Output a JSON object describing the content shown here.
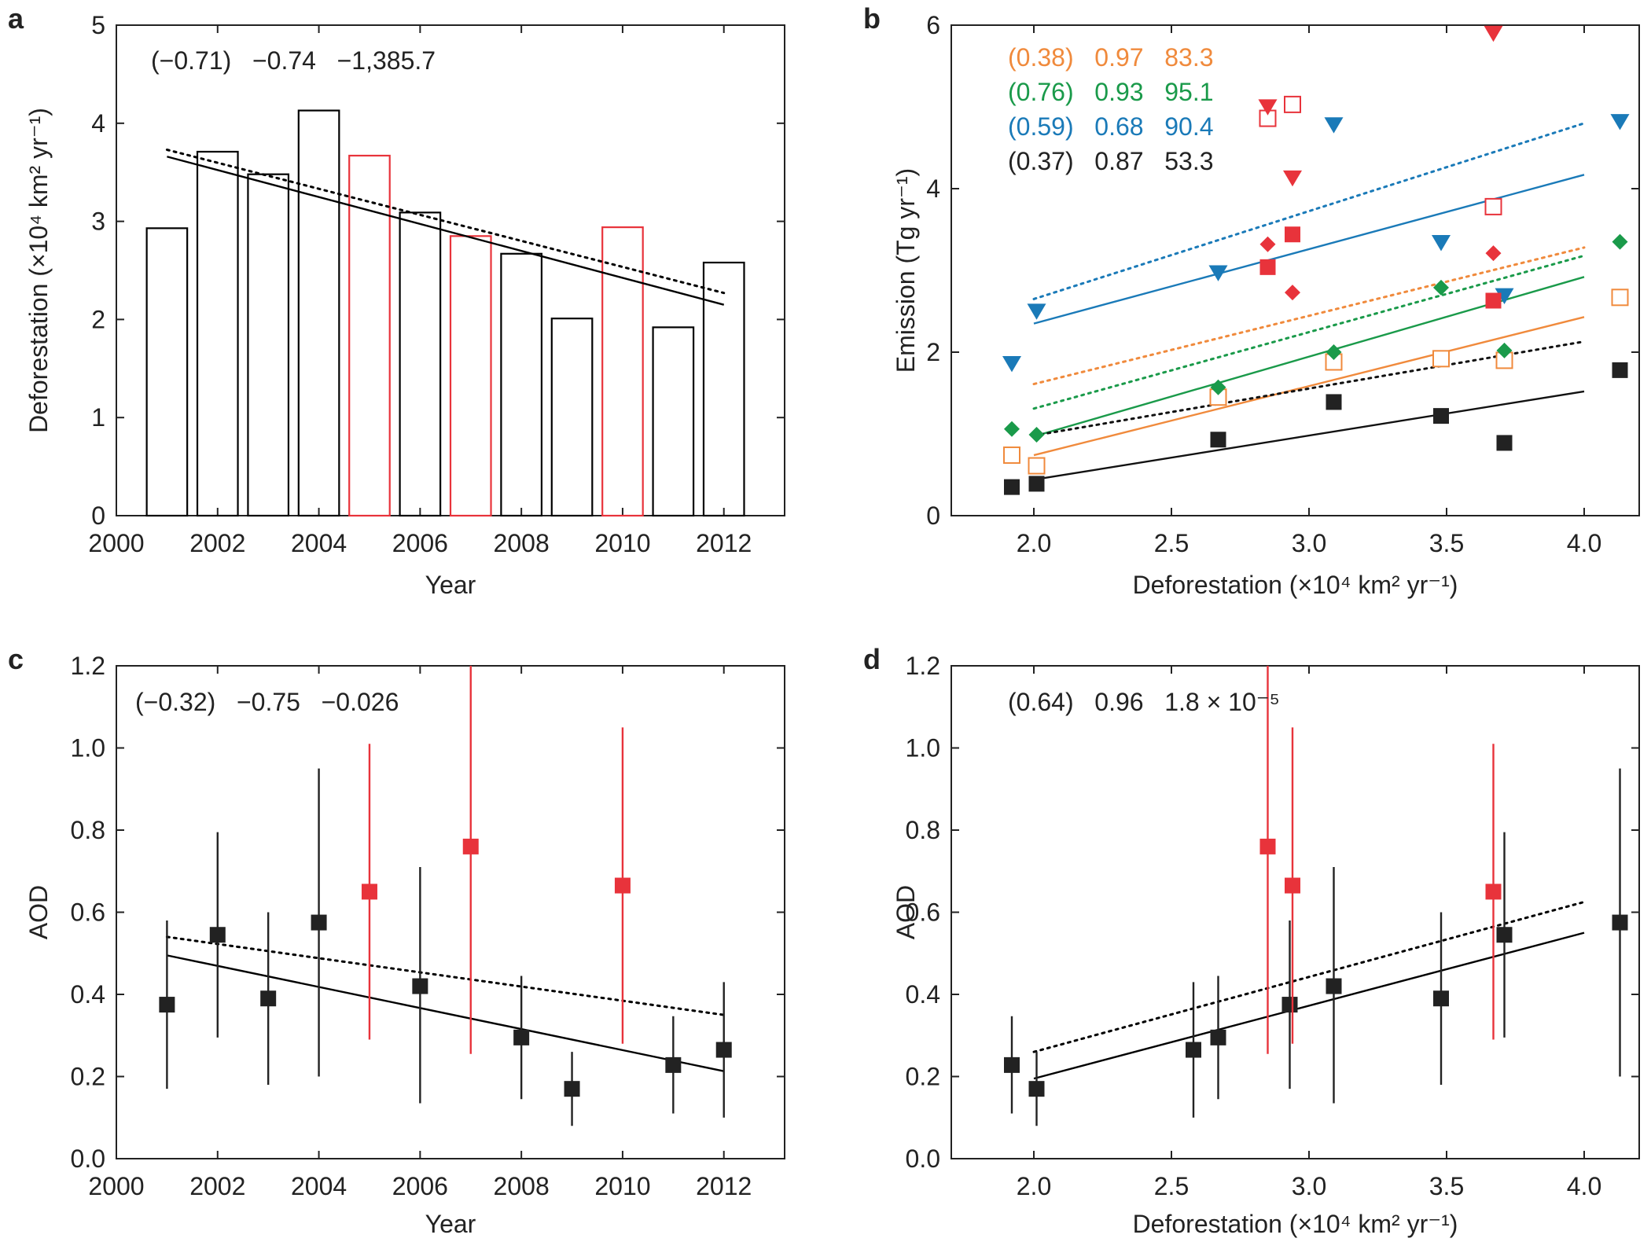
{
  "chart_data": [
    {
      "id": "a",
      "panel_label": "a",
      "type": "bar",
      "xlabel": "Year",
      "ylabel": "Deforestation (×10⁴ km² yr⁻¹)",
      "xlim": [
        2000,
        2013.2
      ],
      "ylim": [
        0,
        5
      ],
      "xticks": [
        2000,
        2002,
        2004,
        2006,
        2008,
        2010,
        2012
      ],
      "yticks": [
        0,
        1,
        2,
        3,
        4,
        5
      ],
      "tick_labels_x": [
        "2000",
        "2002",
        "2004",
        "2006",
        "2008",
        "2010",
        "2012"
      ],
      "tick_labels_y": [
        "0",
        "1",
        "2",
        "3",
        "4",
        "5"
      ],
      "bar_width": 0.8,
      "bars": [
        {
          "x": 2001,
          "value": 2.93,
          "color": "#000000"
        },
        {
          "x": 2002,
          "value": 3.71,
          "color": "#000000"
        },
        {
          "x": 2003,
          "value": 3.48,
          "color": "#000000"
        },
        {
          "x": 2004,
          "value": 4.13,
          "color": "#000000"
        },
        {
          "x": 2005,
          "value": 3.67,
          "color": "#e8333b"
        },
        {
          "x": 2006,
          "value": 3.09,
          "color": "#000000"
        },
        {
          "x": 2007,
          "value": 2.85,
          "color": "#e8333b"
        },
        {
          "x": 2008,
          "value": 2.67,
          "color": "#000000"
        },
        {
          "x": 2009,
          "value": 2.01,
          "color": "#000000"
        },
        {
          "x": 2010,
          "value": 2.94,
          "color": "#e8333b"
        },
        {
          "x": 2011,
          "value": 1.92,
          "color": "#000000"
        },
        {
          "x": 2012,
          "value": 2.58,
          "color": "#000000"
        }
      ],
      "lines": [
        {
          "style": "solid",
          "color": "#000000",
          "x": [
            2001,
            2012
          ],
          "y": [
            3.66,
            2.15
          ]
        },
        {
          "style": "dotted",
          "color": "#000000",
          "x": [
            2001,
            2012
          ],
          "y": [
            3.73,
            2.27
          ]
        }
      ],
      "annotations": [
        {
          "text": "(−0.71)   −0.74   −1,385.7",
          "color": "#222222",
          "anchor": "top-left"
        }
      ]
    },
    {
      "id": "b",
      "panel_label": "b",
      "type": "scatter",
      "xlabel": "Deforestation (×10⁴ km² yr⁻¹)",
      "ylabel": "Emission (Tg yr⁻¹)",
      "xlim": [
        1.7,
        4.2
      ],
      "ylim": [
        0,
        6
      ],
      "xticks": [
        2.0,
        2.5,
        3.0,
        3.5,
        4.0
      ],
      "yticks": [
        0,
        2,
        4,
        6
      ],
      "tick_labels_x": [
        "2.0",
        "2.5",
        "3.0",
        "3.5",
        "4.0"
      ],
      "tick_labels_y": [
        "0",
        "2",
        "4",
        "6"
      ],
      "series": [
        {
          "name": "orange",
          "marker": "square-open",
          "color": "#f08a3c",
          "points": [
            [
              1.92,
              0.74
            ],
            [
              2.01,
              0.61
            ],
            [
              2.67,
              1.45
            ],
            [
              3.09,
              1.88
            ],
            [
              3.48,
              1.92
            ],
            [
              3.71,
              1.9
            ],
            [
              4.13,
              2.67
            ]
          ]
        },
        {
          "name": "orange-red",
          "marker": "square-open",
          "color": "#e8333b",
          "points": [
            [
              2.85,
              4.86
            ],
            [
              2.94,
              5.03
            ],
            [
              3.67,
              3.78
            ]
          ]
        },
        {
          "name": "green",
          "marker": "diamond",
          "color": "#1a9a4a",
          "points": [
            [
              1.92,
              1.06
            ],
            [
              2.01,
              0.99
            ],
            [
              2.67,
              1.57
            ],
            [
              3.09,
              2.0
            ],
            [
              3.48,
              2.79
            ],
            [
              3.71,
              2.02
            ],
            [
              4.13,
              3.35
            ]
          ]
        },
        {
          "name": "green-red",
          "marker": "diamond",
          "color": "#e8333b",
          "points": [
            [
              2.85,
              3.32
            ],
            [
              2.94,
              2.73
            ],
            [
              3.67,
              3.21
            ]
          ]
        },
        {
          "name": "blue",
          "marker": "triangle-down",
          "color": "#1a7ab8",
          "points": [
            [
              1.92,
              1.86
            ],
            [
              2.01,
              2.5
            ],
            [
              2.67,
              2.97
            ],
            [
              3.09,
              4.78
            ],
            [
              3.48,
              3.34
            ],
            [
              3.71,
              2.69
            ],
            [
              4.13,
              4.82
            ]
          ]
        },
        {
          "name": "blue-red",
          "marker": "triangle-down",
          "color": "#e8333b",
          "points": [
            [
              2.85,
              5.0
            ],
            [
              2.94,
              4.13
            ],
            [
              3.67,
              5.9
            ]
          ]
        },
        {
          "name": "black",
          "marker": "square",
          "color": "#222222",
          "points": [
            [
              1.92,
              0.35
            ],
            [
              2.01,
              0.39
            ],
            [
              2.67,
              0.93
            ],
            [
              3.09,
              1.39
            ],
            [
              3.48,
              1.22
            ],
            [
              3.71,
              0.89
            ],
            [
              4.13,
              1.78
            ]
          ]
        },
        {
          "name": "black-red",
          "marker": "square",
          "color": "#e8333b",
          "points": [
            [
              2.85,
              3.04
            ],
            [
              2.94,
              3.44
            ],
            [
              3.67,
              2.63
            ]
          ]
        }
      ],
      "lines": [
        {
          "style": "solid",
          "color": "#1a7ab8",
          "x": [
            2.0,
            4.0
          ],
          "y": [
            2.35,
            4.17
          ]
        },
        {
          "style": "dotted",
          "color": "#1a7ab8",
          "x": [
            2.0,
            4.0
          ],
          "y": [
            2.65,
            4.8
          ]
        },
        {
          "style": "solid",
          "color": "#1a9a4a",
          "x": [
            2.0,
            4.0
          ],
          "y": [
            0.97,
            2.92
          ]
        },
        {
          "style": "dotted",
          "color": "#1a9a4a",
          "x": [
            2.0,
            4.0
          ],
          "y": [
            1.31,
            3.18
          ]
        },
        {
          "style": "solid",
          "color": "#f08a3c",
          "x": [
            2.0,
            4.0
          ],
          "y": [
            0.74,
            2.43
          ]
        },
        {
          "style": "dotted",
          "color": "#f08a3c",
          "x": [
            2.0,
            4.0
          ],
          "y": [
            1.61,
            3.28
          ]
        },
        {
          "style": "solid",
          "color": "#111111",
          "x": [
            2.0,
            4.0
          ],
          "y": [
            0.44,
            1.52
          ]
        },
        {
          "style": "dotted",
          "color": "#111111",
          "x": [
            2.0,
            4.0
          ],
          "y": [
            0.98,
            2.13
          ]
        }
      ],
      "annotations": [
        {
          "text": "(0.38)   0.97   83.3",
          "color": "#f08a3c",
          "anchor": "top-left"
        },
        {
          "text": "(0.76)   0.93   95.1",
          "color": "#1a9a4a",
          "anchor": "top-left"
        },
        {
          "text": "(0.59)   0.68   90.4",
          "color": "#1a7ab8",
          "anchor": "top-left"
        },
        {
          "text": "(0.37)   0.87   53.3",
          "color": "#222222",
          "anchor": "top-left"
        }
      ]
    },
    {
      "id": "c",
      "panel_label": "c",
      "type": "scatter",
      "xlabel": "Year",
      "ylabel": "AOD",
      "xlim": [
        2000,
        2013.2
      ],
      "ylim": [
        0,
        1.2
      ],
      "xticks": [
        2000,
        2002,
        2004,
        2006,
        2008,
        2010,
        2012
      ],
      "yticks": [
        0,
        0.2,
        0.4,
        0.6,
        0.8,
        1.0,
        1.2
      ],
      "tick_labels_x": [
        "2000",
        "2002",
        "2004",
        "2006",
        "2008",
        "2010",
        "2012"
      ],
      "tick_labels_y": [
        "0.0",
        "0.2",
        "0.4",
        "0.6",
        "0.8",
        "1.0",
        "1.2"
      ],
      "series": [
        {
          "name": "black",
          "marker": "square",
          "color": "#222222",
          "points": [
            {
              "x": 2001,
              "y": 0.375,
              "lo": 0.17,
              "hi": 0.58
            },
            {
              "x": 2002,
              "y": 0.545,
              "lo": 0.295,
              "hi": 0.795
            },
            {
              "x": 2003,
              "y": 0.39,
              "lo": 0.18,
              "hi": 0.6
            },
            {
              "x": 2004,
              "y": 0.575,
              "lo": 0.2,
              "hi": 0.95
            },
            {
              "x": 2006,
              "y": 0.42,
              "lo": 0.135,
              "hi": 0.71
            },
            {
              "x": 2008,
              "y": 0.295,
              "lo": 0.145,
              "hi": 0.445
            },
            {
              "x": 2009,
              "y": 0.17,
              "lo": 0.08,
              "hi": 0.26
            },
            {
              "x": 2011,
              "y": 0.228,
              "lo": 0.11,
              "hi": 0.347
            },
            {
              "x": 2012,
              "y": 0.265,
              "lo": 0.1,
              "hi": 0.43
            }
          ]
        },
        {
          "name": "red",
          "marker": "square",
          "color": "#e8333b",
          "points": [
            {
              "x": 2005,
              "y": 0.65,
              "lo": 0.29,
              "hi": 1.01
            },
            {
              "x": 2007,
              "y": 0.76,
              "lo": 0.255,
              "hi": 1.2
            },
            {
              "x": 2010,
              "y": 0.665,
              "lo": 0.28,
              "hi": 1.05
            }
          ]
        }
      ],
      "lines": [
        {
          "style": "solid",
          "color": "#000000",
          "x": [
            2001,
            2012
          ],
          "y": [
            0.495,
            0.213
          ]
        },
        {
          "style": "dotted",
          "color": "#000000",
          "x": [
            2001,
            2012
          ],
          "y": [
            0.54,
            0.35
          ]
        }
      ],
      "annotations": [
        {
          "text": "(−0.32)   −0.75   −0.026",
          "color": "#222222",
          "anchor": "top-left"
        }
      ]
    },
    {
      "id": "d",
      "panel_label": "d",
      "type": "scatter",
      "xlabel": "Deforestation (×10⁴ km² yr⁻¹)",
      "ylabel": "AOD",
      "xlim": [
        1.7,
        4.2
      ],
      "ylim": [
        0,
        1.2
      ],
      "xticks": [
        2.0,
        2.5,
        3.0,
        3.5,
        4.0
      ],
      "yticks": [
        0,
        0.2,
        0.4,
        0.6,
        0.8,
        1.0,
        1.2
      ],
      "tick_labels_x": [
        "2.0",
        "2.5",
        "3.0",
        "3.5",
        "4.0"
      ],
      "tick_labels_y": [
        "0.0",
        "0.2",
        "0.4",
        "0.6",
        "0.8",
        "1.0",
        "1.2"
      ],
      "series": [
        {
          "name": "black",
          "marker": "square",
          "color": "#222222",
          "points": [
            {
              "x": 1.92,
              "y": 0.228,
              "lo": 0.11,
              "hi": 0.347
            },
            {
              "x": 2.01,
              "y": 0.17,
              "lo": 0.08,
              "hi": 0.26
            },
            {
              "x": 2.58,
              "y": 0.265,
              "lo": 0.1,
              "hi": 0.43
            },
            {
              "x": 2.67,
              "y": 0.295,
              "lo": 0.145,
              "hi": 0.445
            },
            {
              "x": 2.93,
              "y": 0.375,
              "lo": 0.17,
              "hi": 0.58
            },
            {
              "x": 3.09,
              "y": 0.42,
              "lo": 0.135,
              "hi": 0.71
            },
            {
              "x": 3.48,
              "y": 0.39,
              "lo": 0.18,
              "hi": 0.6
            },
            {
              "x": 3.71,
              "y": 0.545,
              "lo": 0.295,
              "hi": 0.795
            },
            {
              "x": 4.13,
              "y": 0.575,
              "lo": 0.2,
              "hi": 0.95
            }
          ]
        },
        {
          "name": "red",
          "marker": "square",
          "color": "#e8333b",
          "points": [
            {
              "x": 2.85,
              "y": 0.76,
              "lo": 0.255,
              "hi": 1.2
            },
            {
              "x": 2.94,
              "y": 0.665,
              "lo": 0.28,
              "hi": 1.05
            },
            {
              "x": 3.67,
              "y": 0.65,
              "lo": 0.29,
              "hi": 1.01
            }
          ]
        }
      ],
      "lines": [
        {
          "style": "solid",
          "color": "#000000",
          "x": [
            2.0,
            4.0
          ],
          "y": [
            0.195,
            0.55
          ]
        },
        {
          "style": "dotted",
          "color": "#000000",
          "x": [
            2.0,
            4.0
          ],
          "y": [
            0.26,
            0.625
          ]
        }
      ],
      "annotations": [
        {
          "text": "(0.64)   0.96   1.8 × 10⁻⁵",
          "color": "#222222",
          "anchor": "top-left"
        }
      ]
    }
  ]
}
